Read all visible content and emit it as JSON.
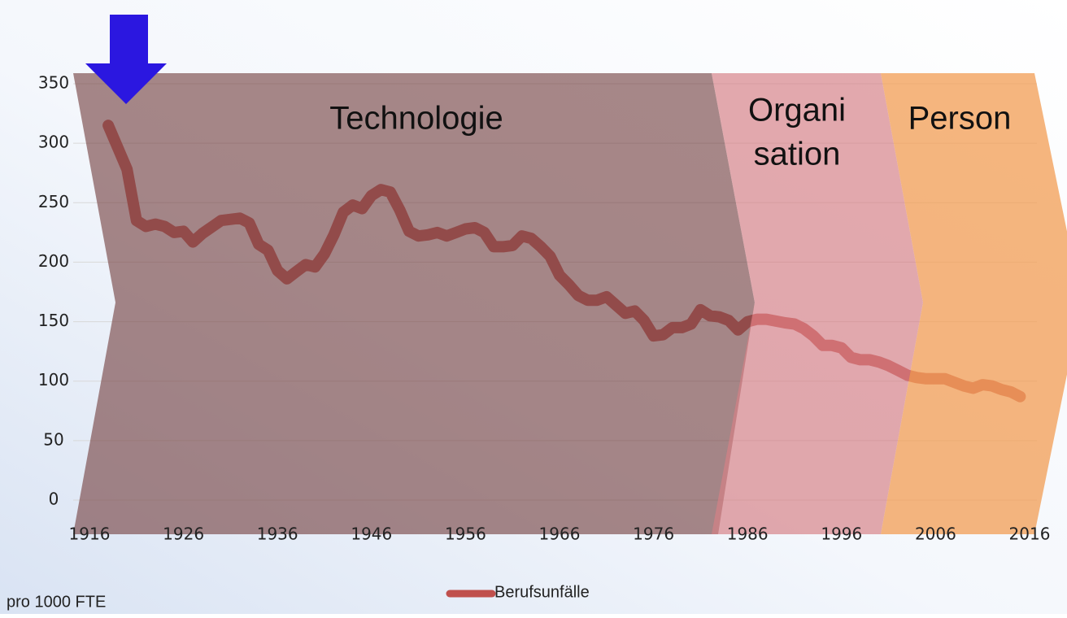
{
  "chart_data": {
    "type": "line",
    "y_label": "pro 1000 FTE",
    "annotations": [
      "Technologie",
      "Organi",
      "sation",
      "Person"
    ],
    "x": [
      1918,
      1920,
      1921,
      1922,
      1923,
      1924,
      1925,
      1926,
      1927,
      1928,
      1930,
      1932,
      1933,
      1934,
      1935,
      1936,
      1937,
      1938,
      1939,
      1940,
      1941,
      1942,
      1943,
      1944,
      1945,
      1946,
      1947,
      1948,
      1949,
      1950,
      1951,
      1952,
      1953,
      1954,
      1955,
      1956,
      1957,
      1958,
      1959,
      1960,
      1961,
      1962,
      1963,
      1964,
      1965,
      1966,
      1967,
      1968,
      1969,
      1970,
      1971,
      1972,
      1973,
      1974,
      1975,
      1976,
      1977,
      1978,
      1979,
      1980,
      1981,
      1982,
      1983,
      1984,
      1985,
      1986,
      1987,
      1988,
      1990,
      1991,
      1992,
      1993,
      1994,
      1995,
      1996,
      1997,
      1998,
      1999,
      2000,
      2001,
      2002,
      2003,
      2004,
      2005,
      2006,
      2007,
      2008,
      2009,
      2010,
      2011,
      2012,
      2013,
      2014,
      2015
    ],
    "series": [
      {
        "name": "Berufsunfälle",
        "color": "#c0504d",
        "values": [
          315,
          278,
          235,
          230,
          232,
          230,
          225,
          226,
          217,
          224,
          235,
          237,
          233,
          215,
          210,
          193,
          186,
          192,
          198,
          196,
          207,
          223,
          242,
          248,
          245,
          256,
          261,
          259,
          244,
          226,
          222,
          223,
          225,
          222,
          225,
          228,
          229,
          225,
          213,
          213,
          214,
          222,
          220,
          213,
          205,
          189,
          181,
          172,
          168,
          168,
          171,
          164,
          157,
          159,
          151,
          138,
          139,
          145,
          145,
          148,
          160,
          155,
          154,
          151,
          143,
          150,
          152,
          152,
          149,
          148,
          144,
          138,
          130,
          130,
          128,
          120,
          118,
          118,
          116,
          113,
          109,
          105,
          103,
          102,
          102,
          102,
          99,
          96,
          94,
          97,
          96,
          93,
          91,
          87
        ]
      }
    ],
    "xlim": [
      1916,
      2016
    ],
    "xticks": [
      1916,
      1926,
      1936,
      1946,
      1956,
      1966,
      1976,
      1986,
      1996,
      2006,
      2016
    ],
    "ylim": [
      0,
      350
    ],
    "yticks": [
      0,
      50,
      100,
      150,
      200,
      250,
      300,
      350
    ],
    "grid": true
  }
}
